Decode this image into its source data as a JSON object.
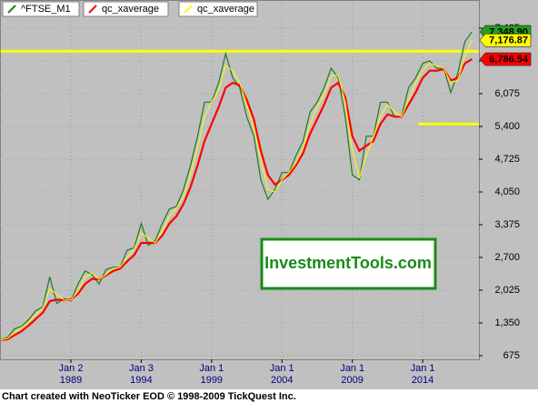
{
  "chart_data": {
    "type": "line",
    "footer": "Chart created with NeoTicker EOD © 1998-2009 TickQuest Inc.",
    "watermark": "InvestmentTools.com",
    "x": [
      1984,
      1984.5,
      1985,
      1985.5,
      1986,
      1986.5,
      1987,
      1987.5,
      1988,
      1988.5,
      1989,
      1989.5,
      1990,
      1990.5,
      1991,
      1991.5,
      1992,
      1992.5,
      1993,
      1993.5,
      1994,
      1994.5,
      1995,
      1995.5,
      1996,
      1996.5,
      1997,
      1997.5,
      1998,
      1998.5,
      1999,
      1999.5,
      2000,
      2000.5,
      2001,
      2001.5,
      2002,
      2002.5,
      2003,
      2003.5,
      2004,
      2004.5,
      2005,
      2005.5,
      2006,
      2006.5,
      2007,
      2007.5,
      2008,
      2008.5,
      2009,
      2009.5,
      2010,
      2010.5,
      2011,
      2011.5,
      2012,
      2012.5,
      2013,
      2013.5,
      2014,
      2014.5,
      2015,
      2015.5,
      2016,
      2016.5,
      2017,
      2017.5
    ],
    "series": [
      {
        "name": "^FTSE_M1",
        "color": "#1f7a1f",
        "label_color": "#22a022",
        "values": [
          1000,
          1050,
          1230,
          1280,
          1420,
          1600,
          1680,
          2300,
          1750,
          1850,
          1800,
          2150,
          2420,
          2350,
          2150,
          2450,
          2500,
          2500,
          2850,
          2900,
          3400,
          2950,
          3050,
          3400,
          3700,
          3750,
          4100,
          4600,
          5200,
          5900,
          5900,
          6300,
          6900,
          6400,
          6200,
          5600,
          5200,
          4300,
          3900,
          4100,
          4450,
          4450,
          4800,
          5100,
          5700,
          5900,
          6200,
          6600,
          6400,
          5600,
          4400,
          4300,
          5200,
          5200,
          5900,
          5900,
          5600,
          5600,
          6200,
          6400,
          6700,
          6750,
          6600,
          6600,
          6100,
          6500,
          7150,
          7348.9
        ],
        "value_labels": [
          null,
          null,
          null,
          null,
          null,
          null,
          null,
          null,
          null,
          null,
          null,
          null,
          null,
          null,
          null,
          null,
          null,
          null,
          null,
          null,
          null,
          null,
          null,
          null,
          null,
          null,
          null,
          null,
          null,
          null,
          null,
          null,
          null,
          null,
          null,
          null,
          null,
          null,
          null,
          null,
          null,
          null,
          null,
          null,
          null,
          null,
          null,
          null,
          null,
          null,
          null,
          null,
          null,
          null,
          null,
          null,
          null,
          null,
          null,
          null,
          null,
          null,
          null,
          null,
          null,
          null,
          null,
          "7,348.90"
        ]
      },
      {
        "name": "qc_xaverage",
        "color": "#ff0000",
        "label_color": "#ff0000",
        "values": [
          1000,
          1010,
          1100,
          1180,
          1300,
          1430,
          1560,
          1800,
          1830,
          1820,
          1830,
          1950,
          2150,
          2260,
          2250,
          2330,
          2420,
          2470,
          2620,
          2750,
          3000,
          3000,
          3000,
          3150,
          3400,
          3550,
          3800,
          4150,
          4600,
          5100,
          5450,
          5800,
          6200,
          6300,
          6250,
          5950,
          5550,
          4900,
          4400,
          4200,
          4300,
          4400,
          4600,
          4850,
          5250,
          5550,
          5850,
          6200,
          6300,
          6000,
          5200,
          4900,
          5000,
          5100,
          5450,
          5650,
          5600,
          5600,
          5850,
          6100,
          6400,
          6550,
          6550,
          6580,
          6350,
          6400,
          6700,
          6786.54
        ],
        "value_labels": [
          null,
          null,
          null,
          null,
          null,
          null,
          null,
          null,
          null,
          null,
          null,
          null,
          null,
          null,
          null,
          null,
          null,
          null,
          null,
          null,
          null,
          null,
          null,
          null,
          null,
          null,
          null,
          null,
          null,
          null,
          null,
          null,
          null,
          null,
          null,
          null,
          null,
          null,
          null,
          null,
          null,
          null,
          null,
          null,
          null,
          null,
          null,
          null,
          null,
          null,
          null,
          null,
          null,
          null,
          null,
          null,
          null,
          null,
          null,
          null,
          null,
          null,
          null,
          null,
          null,
          null,
          null,
          "6,786.54"
        ]
      },
      {
        "name": "qc_xaverage",
        "color": "#ffff00",
        "label_color": "#ffff00",
        "values": [
          1000,
          1030,
          1150,
          1260,
          1360,
          1520,
          1650,
          2050,
          1950,
          1820,
          1820,
          2000,
          2300,
          2380,
          2250,
          2350,
          2470,
          2500,
          2700,
          2880,
          3200,
          3100,
          3000,
          3250,
          3550,
          3720,
          3950,
          4400,
          4950,
          5600,
          5900,
          6150,
          6650,
          6550,
          6300,
          5850,
          5400,
          4700,
          4100,
          4050,
          4300,
          4450,
          4650,
          4950,
          5450,
          5800,
          6050,
          6450,
          6450,
          5900,
          4900,
          4350,
          4800,
          5200,
          5600,
          5850,
          5700,
          5600,
          5950,
          6300,
          6550,
          6700,
          6650,
          6600,
          6300,
          6350,
          6850,
          7176.87
        ],
        "value_labels": [
          null,
          null,
          null,
          null,
          null,
          null,
          null,
          null,
          null,
          null,
          null,
          null,
          null,
          null,
          null,
          null,
          null,
          null,
          null,
          null,
          null,
          null,
          null,
          null,
          null,
          null,
          null,
          null,
          null,
          null,
          null,
          null,
          null,
          null,
          null,
          null,
          null,
          null,
          null,
          null,
          null,
          null,
          null,
          null,
          null,
          null,
          null,
          null,
          null,
          null,
          null,
          null,
          null,
          null,
          null,
          null,
          null,
          null,
          null,
          null,
          null,
          null,
          null,
          null,
          null,
          null,
          null,
          "7,176.87"
        ]
      }
    ],
    "hlines": [
      {
        "value": 6950,
        "x": [
          1984,
          2018
        ],
        "color": "#ffff00"
      },
      {
        "value": 5450,
        "x": [
          2013.7,
          2018
        ],
        "color": "#ffff00"
      }
    ],
    "xlim": [
      1984,
      2018
    ],
    "ylim": [
      600,
      7950
    ],
    "xticks": [
      {
        "value": 1989,
        "label": "Jan 2 1989"
      },
      {
        "value": 1994,
        "label": "Jan 3 1994"
      },
      {
        "value": 1999,
        "label": "Jan 1 1999"
      },
      {
        "value": 2004,
        "label": "Jan 1 2004"
      },
      {
        "value": 2009,
        "label": "Jan 1 2009"
      },
      {
        "value": 2014,
        "label": "Jan 1 2014"
      }
    ],
    "yticks": [
      {
        "value": 675,
        "label": "675"
      },
      {
        "value": 1350,
        "label": "1,350"
      },
      {
        "value": 2025,
        "label": "2,025"
      },
      {
        "value": 2700,
        "label": "2,700"
      },
      {
        "value": 3375,
        "label": "3,375"
      },
      {
        "value": 4050,
        "label": "4,050"
      },
      {
        "value": 4725,
        "label": "4,725"
      },
      {
        "value": 5400,
        "label": "5,400"
      },
      {
        "value": 6075,
        "label": "6,075"
      },
      {
        "value": 6750,
        "label": "6,750"
      },
      {
        "value": 7425,
        "label": "7,425"
      }
    ],
    "grid": true
  }
}
